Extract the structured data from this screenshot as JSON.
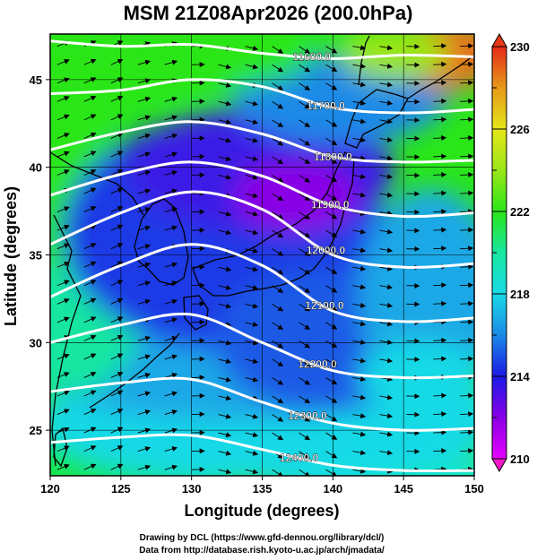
{
  "title": "MSM 21Z08Apr2026 (200.0hPa)",
  "xaxis": {
    "label": "Longitude (degrees)",
    "range": [
      120,
      150
    ],
    "ticks": [
      "120",
      "125",
      "130",
      "135",
      "140",
      "145",
      "150"
    ]
  },
  "yaxis": {
    "label": "Latitude  (degrees)",
    "range": [
      22.4,
      47.6
    ],
    "ticks": [
      "25",
      "30",
      "35",
      "40",
      "45"
    ]
  },
  "colorbar": {
    "range": [
      210,
      230
    ],
    "ticks": [
      "210",
      "214",
      "218",
      "222",
      "226",
      "230"
    ],
    "colors": [
      "#e600ff",
      "#8a00e6",
      "#1a1ae6",
      "#1a8ae6",
      "#19d9e6",
      "#19e6a0",
      "#2ae619",
      "#9ae619",
      "#e6e619",
      "#e69a19",
      "#e62a19"
    ]
  },
  "contours": [
    {
      "label": "11600.0",
      "lat": [
        47.2,
        46.9,
        47.0,
        46.5,
        46.2,
        46.4,
        46.3
      ],
      "label_lon": 138.5
    },
    {
      "label": "11700.0",
      "lat": [
        44.2,
        44.4,
        45.0,
        44.6,
        43.4,
        43.1,
        43.3
      ],
      "label_lon": 139.5
    },
    {
      "label": "11800.0",
      "lat": [
        41.0,
        42.0,
        42.6,
        41.9,
        40.6,
        40.3,
        40.4
      ],
      "label_lon": 140.0
    },
    {
      "label": "11900.0",
      "lat": [
        38.4,
        39.6,
        40.3,
        39.5,
        37.8,
        37.2,
        37.4
      ],
      "label_lon": 139.8
    },
    {
      "label": "12000.0",
      "lat": [
        35.6,
        37.4,
        38.6,
        37.6,
        35.0,
        34.3,
        34.5
      ],
      "label_lon": 139.5
    },
    {
      "label": "12100.0",
      "lat": [
        32.6,
        34.4,
        35.6,
        34.4,
        31.8,
        31.2,
        31.4
      ],
      "label_lon": 139.4
    },
    {
      "label": "12200.0",
      "lat": [
        30.0,
        31.0,
        31.6,
        30.0,
        28.4,
        28.0,
        28.1
      ],
      "label_lon": 138.9
    },
    {
      "label": "12300.0",
      "lat": [
        27.2,
        27.7,
        27.9,
        26.6,
        25.4,
        25.0,
        25.1
      ],
      "label_lon": 138.2
    },
    {
      "label": "12400.0",
      "lat": [
        24.3,
        24.6,
        24.7,
        23.9,
        23.0,
        22.7,
        22.7
      ],
      "label_lon": 137.6
    }
  ],
  "contour_lons": [
    120,
    125,
    130,
    135,
    140,
    145,
    150
  ],
  "credits": {
    "line1": "Drawing by DCL (https://www.gfd-dennou.org/library/dcl/)",
    "line2": "Data from http://database.rish.kyoto-u.ac.jp/arch/jmadata/"
  }
}
